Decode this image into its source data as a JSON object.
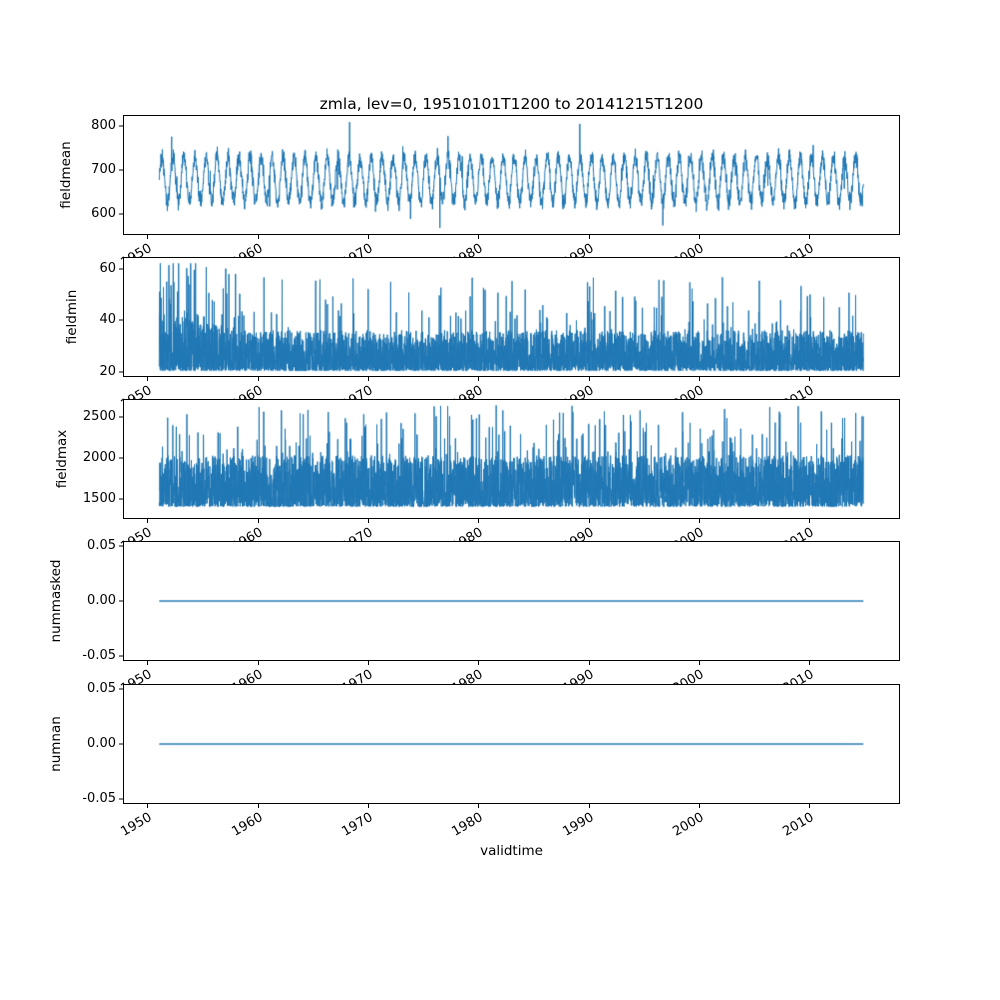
{
  "figure": {
    "background": "#ffffff",
    "text_color": "#000000"
  },
  "chart_data": {
    "type": "line",
    "title": "zmla, lev=0, 19510101T1200 to 20141215T1200",
    "xlabel": "validtime",
    "legend": "none",
    "grid": false,
    "line_color": "#1f77b4",
    "x_range": [
      1951.0,
      2014.96
    ],
    "xlim": [
      1947.8,
      2018.2
    ],
    "xticks": [
      1950,
      1960,
      1970,
      1980,
      1990,
      2000,
      2010
    ],
    "xtick_labels": [
      "1950",
      "1960",
      "1970",
      "1980",
      "1990",
      "2000",
      "2010"
    ],
    "xtick_rotation_deg": 30,
    "subplots": [
      {
        "ylabel": "fieldmean",
        "ylim": [
          553,
          824
        ],
        "yticks": [
          600,
          700,
          800
        ],
        "ytick_labels": [
          "600",
          "700",
          "800"
        ],
        "description": "dense noisy annual-cycle series, typical band 600-760, extremes 566-812",
        "profile": {
          "kind": "seasonal",
          "mean": 678,
          "seasonal_amp": 52,
          "noise_amp": 28,
          "min": 566,
          "max": 812,
          "force_peaks": [
            [
              1968.3,
              810
            ],
            [
              1976.5,
              567
            ],
            [
              1989.2,
              806
            ]
          ]
        }
      },
      {
        "ylabel": "fieldmin",
        "ylim": [
          17.9,
          64.6
        ],
        "yticks": [
          20,
          40,
          60
        ],
        "ytick_labels": [
          "20",
          "40",
          "60"
        ],
        "description": "bottom-heavy spiky series, floor 20, dense band 20-35, spikes to 62 (largest ~1954), elevated 1951-1959",
        "profile": {
          "kind": "spiky",
          "floor": 20,
          "band": 16,
          "band_pow": 2,
          "spike_prob": 0.03,
          "spike_base": 33,
          "spike_extra": 24,
          "spike_pow": 2,
          "early_until": 1959,
          "early_gain": 1.45,
          "early_prob_gain": 2.6,
          "min": 20,
          "max": 62.5,
          "force_peaks": [
            [
              1954.3,
              62.5
            ],
            [
              1980.6,
              52
            ],
            [
              1996.4,
              56
            ],
            [
              1999.2,
              55
            ]
          ]
        }
      },
      {
        "ylabel": "fieldmax",
        "ylim": [
          1253,
          2727
        ],
        "yticks": [
          1500,
          2000,
          2500
        ],
        "ytick_labels": [
          "1500",
          "2000",
          "2500"
        ],
        "description": "bottom-heavy spiky series, dense band 1400-2100, spikes to ~2660",
        "profile": {
          "kind": "spiky",
          "floor": 1395,
          "band": 640,
          "band_pow": 1.8,
          "spike_prob": 0.05,
          "spike_base": 1900,
          "spike_extra": 760,
          "spike_pow": 1.5,
          "early_until": 0,
          "early_gain": 1,
          "early_prob_gain": 1,
          "min": 1340,
          "max": 2660,
          "force_peaks": [
            [
              1977.2,
              2650
            ],
            [
              1988.5,
              2655
            ],
            [
              1963.8,
              2560
            ]
          ]
        }
      },
      {
        "ylabel": "nummasked",
        "ylim": [
          -0.055,
          0.055
        ],
        "yticks": [
          -0.05,
          0,
          0.05
        ],
        "ytick_labels": [
          "-0.05",
          "0.00",
          "0.05"
        ],
        "description": "constant zero line over full record",
        "profile": {
          "kind": "flat",
          "value": 0
        }
      },
      {
        "ylabel": "numnan",
        "ylim": [
          -0.055,
          0.055
        ],
        "yticks": [
          -0.05,
          0,
          0.05
        ],
        "ytick_labels": [
          "-0.05",
          "0.00",
          "0.05"
        ],
        "description": "constant zero line over full record",
        "profile": {
          "kind": "flat",
          "value": 0
        }
      }
    ]
  }
}
